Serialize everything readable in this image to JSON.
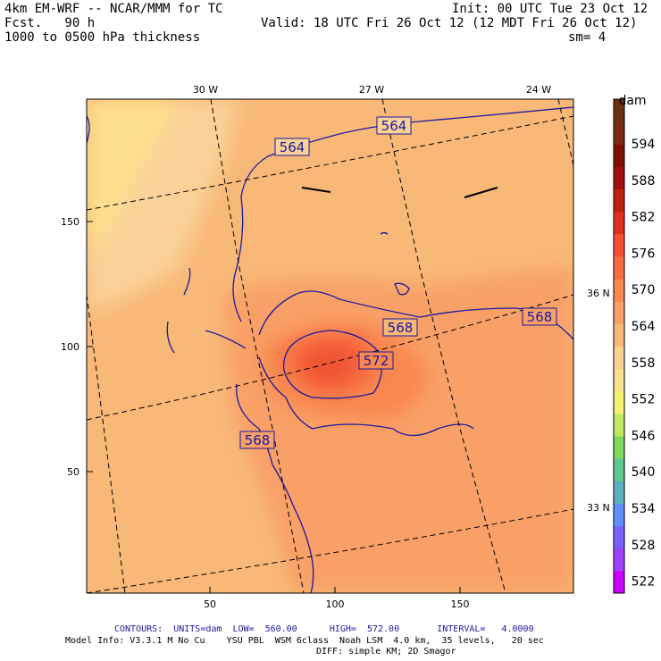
{
  "header": {
    "model": "4km EM-WRF -- NCAR/MMM for TC",
    "init": "Init: 00 UTC Tue 23 Oct 12",
    "fcst": "Fcst.   90 h",
    "valid": "Valid: 18 UTC Fri 26 Oct 12 (12 MDT Fri 26 Oct 12)",
    "field": "1000 to 0500 hPa thickness",
    "smoothing": "sm= 4"
  },
  "map": {
    "longitude_labels": [
      "30 W",
      "27 W",
      "24 W"
    ],
    "latitude_labels": [
      "36 N",
      "33 N"
    ],
    "y_ticks": [
      "150",
      "100",
      "50"
    ],
    "x_ticks": [
      "50",
      "100",
      "150"
    ],
    "contour_labels": [
      "564",
      "564",
      "568",
      "568",
      "572",
      "568"
    ],
    "contour_interval": 4,
    "low": 560.0,
    "high": 572.0
  },
  "colorbar": {
    "unit": "dam",
    "levels": [
      "594",
      "588",
      "582",
      "576",
      "570",
      "564",
      "558",
      "552",
      "546",
      "540",
      "534",
      "528",
      "522"
    ],
    "colors": [
      "#cc00ff",
      "#a040ff",
      "#7a60ff",
      "#6090ff",
      "#60b0c0",
      "#60c890",
      "#80d860",
      "#c0e860",
      "#f8f070",
      "#f8e090",
      "#f8d090",
      "#f8b878",
      "#f8a068",
      "#f88850",
      "#f86a40",
      "#f05030",
      "#e03020",
      "#c02010",
      "#a01010",
      "#801000",
      "#7a2a10",
      "#6a3010"
    ]
  },
  "footer": {
    "contours_line": "CONTOURS:  UNITS=dam  LOW=  560.00      HIGH=  572.00       INTERVAL=   4.0000",
    "model_info": "Model Info: V3.3.1 M No Cu    YSU PBL  WSM 6class  Noah LSM  4.0 km,  35 levels,   20 sec",
    "diff": "DIFF: simple KM; 2D Smagor"
  }
}
